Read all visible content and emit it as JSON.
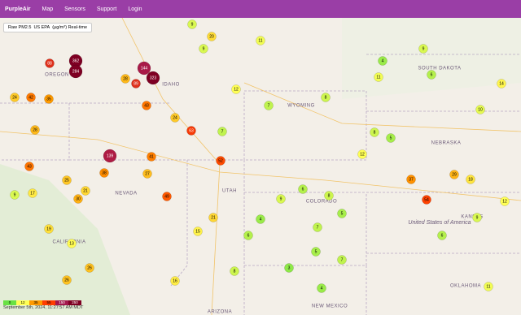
{
  "nav": {
    "brand": "PurpleAir",
    "menu": [
      "Map",
      "Sensors",
      "Support",
      "Login"
    ]
  },
  "filter": {
    "metric": "Raw PM2.5",
    "standard": "US EPA",
    "unit": "(µg/m³) Real-time"
  },
  "map": {
    "states": [
      "OREGON",
      "IDAHO",
      "WYOMING",
      "SOUTH DAKOTA",
      "NEBRASKA",
      "NEVADA",
      "UTAH",
      "COLORADO",
      "KANSAS",
      "CALIFORNIA",
      "ARIZONA",
      "NEW MEXICO",
      "OKLAHOMA"
    ],
    "country": "United States of America",
    "sensors": [
      362,
      284,
      88,
      144,
      323,
      28,
      89,
      139,
      38,
      41,
      27,
      63,
      7,
      52,
      21,
      15,
      49,
      42,
      24,
      35,
      28,
      43,
      9,
      17,
      25,
      30,
      21,
      19,
      13,
      26,
      26,
      16,
      8,
      6,
      4,
      9,
      6,
      8,
      5,
      7,
      5,
      7,
      3,
      4,
      8,
      5,
      37,
      54,
      29,
      18,
      6,
      9,
      12,
      11,
      9,
      6,
      11,
      4,
      10,
      14,
      11,
      7,
      8,
      12,
      9,
      12,
      24,
      43,
      9,
      20
    ]
  },
  "footer": {
    "timestamp": "September 5th, 2024, 11:27:57 AM MDT",
    "scale": [
      0,
      12,
      35,
      55,
      150,
      250
    ]
  }
}
